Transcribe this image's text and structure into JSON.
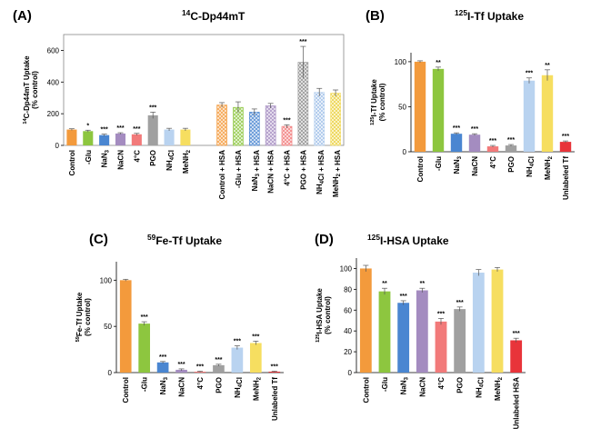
{
  "chart_data": [
    {
      "panel": "(A)",
      "type": "bar",
      "title": "14C-Dp44mT",
      "title_parts": {
        "sup": "14",
        "main": "C-Dp44mT"
      },
      "ylabel": "14C-Dp44mT Uptake (% control)",
      "ylabel_line1": {
        "sup": "14",
        "main": "C-Dp44mT Uptake"
      },
      "ylabel_line2": "(% control)",
      "ylim": [
        0,
        700
      ],
      "yticks": [
        "0",
        "200",
        "400",
        "600"
      ],
      "categories": [
        "Control",
        "-Glu",
        "NaN3",
        "NaCN",
        "4°C",
        "PGO",
        "NH4Cl",
        "MeNH2",
        "Control + HSA",
        "-Glu + HSA",
        "NaN3 + HSA",
        "NaCN + HSA",
        "4°C + HSA",
        "PGO + HSA",
        "NH4Cl + HSA",
        "MeNH2 + HSA"
      ],
      "values": [
        100,
        90,
        65,
        75,
        70,
        190,
        100,
        100,
        255,
        240,
        210,
        250,
        120,
        525,
        335,
        330
      ],
      "errors": [
        5,
        6,
        6,
        5,
        6,
        20,
        8,
        8,
        15,
        35,
        20,
        15,
        10,
        100,
        25,
        20
      ],
      "significance": [
        "",
        "*",
        "***",
        "***",
        "***",
        "***",
        "",
        "",
        "",
        "",
        "",
        "",
        "***",
        "***",
        "",
        ""
      ],
      "colors": [
        "#F39A3C",
        "#8DC63F",
        "#4A86D1",
        "#A48CC0",
        "#F27A7A",
        "#A0A0A0",
        "#B9D3F0",
        "#F6DE60",
        "#F39A3C",
        "#8DC63F",
        "#4A86D1",
        "#A48CC0",
        "#F27A7A",
        "#A0A0A0",
        "#B9D3F0",
        "#F6DE60"
      ]
    },
    {
      "panel": "(B)",
      "type": "bar",
      "title": "125I-Tf Uptake",
      "title_parts": {
        "sup": "125",
        "main": "I-Tf Uptake"
      },
      "ylabel": "125I-Tf Uptake (% control)",
      "ylabel_line1": {
        "sup": "125",
        "main": "I-Tf Uptake"
      },
      "ylabel_line2": "(% control)",
      "ylim": [
        0,
        110
      ],
      "yticks": [
        "0",
        "50",
        "100"
      ],
      "categories": [
        "Control",
        "-Glu",
        "NaN3",
        "NaCN",
        "4°C",
        "PGO",
        "NH4Cl",
        "MeNH2",
        "Unlabeled Tf"
      ],
      "values": [
        100,
        92,
        20,
        19,
        6,
        7,
        79,
        85,
        11
      ],
      "errors": [
        1,
        2,
        1,
        1,
        1,
        1,
        3,
        6,
        1
      ],
      "significance": [
        "",
        "**",
        "***",
        "***",
        "***",
        "***",
        "***",
        "**",
        "***"
      ],
      "colors": [
        "#F39A3C",
        "#8DC63F",
        "#4A86D1",
        "#A48CC0",
        "#F27A7A",
        "#A0A0A0",
        "#B9D3F0",
        "#F6DE60",
        "#E8343A"
      ]
    },
    {
      "panel": "(C)",
      "type": "bar",
      "title": "59Fe-Tf Uptake",
      "title_parts": {
        "sup": "59",
        "main": "Fe-Tf Uptake"
      },
      "ylabel": "59Fe-Tf Uptake (% control)",
      "ylabel_line1": {
        "sup": "59",
        "main": "Fe-Tf Uptake"
      },
      "ylabel_line2": "(% control)",
      "ylim": [
        0,
        120
      ],
      "yticks": [
        "0",
        "50",
        "100"
      ],
      "categories": [
        "Control",
        "-Glu",
        "NaN3",
        "NaCN",
        "4°C",
        "PGO",
        "NH4Cl",
        "MeNH2",
        "Unlabeled Tf"
      ],
      "values": [
        100,
        53,
        11,
        3,
        1,
        8,
        27,
        32,
        1
      ],
      "errors": [
        1,
        2,
        1,
        1,
        0.5,
        1,
        2,
        2,
        0.5
      ],
      "significance": [
        "",
        "***",
        "***",
        "***",
        "***",
        "***",
        "***",
        "***",
        "***"
      ],
      "colors": [
        "#F39A3C",
        "#8DC63F",
        "#4A86D1",
        "#A48CC0",
        "#F27A7A",
        "#A0A0A0",
        "#B9D3F0",
        "#F6DE60",
        "#E8343A"
      ]
    },
    {
      "panel": "(D)",
      "type": "bar",
      "title": "125I-HSA Uptake",
      "title_parts": {
        "sup": "125",
        "main": "I-HSA Uptake"
      },
      "ylabel": "125I-HSA Uptake (% control)",
      "ylabel_line1": {
        "sup": "125",
        "main": "I-HSA Uptake"
      },
      "ylabel_line2": "(% control)",
      "ylim": [
        0,
        110
      ],
      "yticks": [
        "0",
        "20",
        "40",
        "60",
        "80",
        "100"
      ],
      "categories": [
        "Control",
        "-Glu",
        "NaN3",
        "NaCN",
        "4°C",
        "PGO",
        "NH4Cl",
        "MeNH2",
        "Unlabeled HSA"
      ],
      "values": [
        100,
        78,
        67,
        79,
        49,
        61,
        96,
        99,
        31
      ],
      "errors": [
        3,
        3,
        2,
        2,
        3,
        2,
        3,
        2,
        2
      ],
      "significance": [
        "",
        "**",
        "***",
        "**",
        "***",
        "***",
        "",
        "",
        "***"
      ],
      "colors": [
        "#F39A3C",
        "#8DC63F",
        "#4A86D1",
        "#A48CC0",
        "#F27A7A",
        "#A0A0A0",
        "#B9D3F0",
        "#F6DE60",
        "#E8343A"
      ]
    }
  ]
}
